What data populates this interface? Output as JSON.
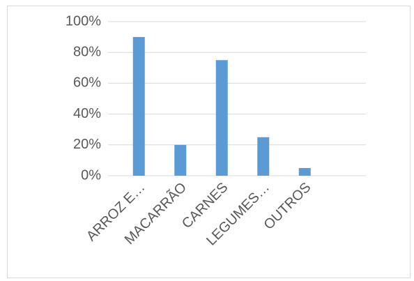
{
  "chart_data": {
    "type": "bar",
    "categories": [
      "ARROZ E…",
      "MACARRÃO",
      "CARNES",
      "LEGUMES…",
      "OUTROS"
    ],
    "values": [
      90,
      20,
      75,
      25,
      5
    ],
    "color": "#5b9bd5",
    "ylim": [
      0,
      100
    ],
    "yticks": [
      {
        "value": 0,
        "label": "0%"
      },
      {
        "value": 20,
        "label": "20%"
      },
      {
        "value": 40,
        "label": "40%"
      },
      {
        "value": 60,
        "label": "60%"
      },
      {
        "value": 80,
        "label": "80%"
      },
      {
        "value": 100,
        "label": "100%"
      }
    ],
    "grid": true
  }
}
